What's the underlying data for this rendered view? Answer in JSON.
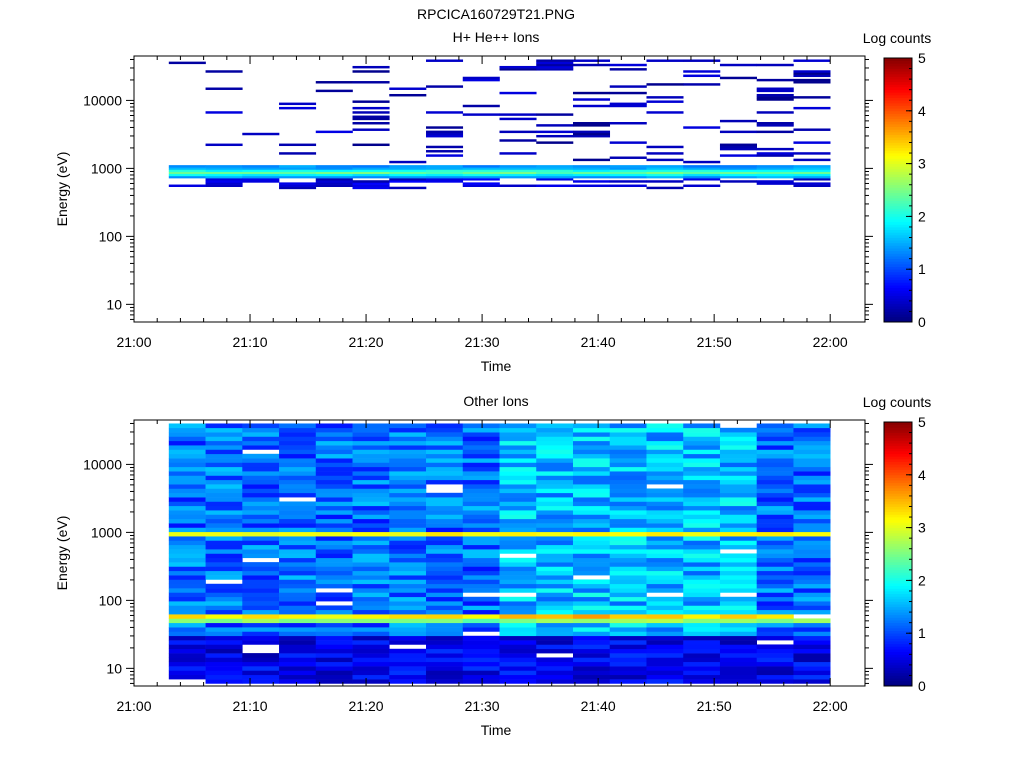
{
  "page_title": "RPCICA160729T21.PNG",
  "colorbar": {
    "label": "Log counts",
    "min": 0,
    "max": 5,
    "ticks": [
      "0",
      "1",
      "2",
      "3",
      "4",
      "5"
    ]
  },
  "chart_data": [
    {
      "type": "heatmap",
      "title": "H+ He++ Ions",
      "xlabel": "Time",
      "ylabel": "Energy (eV)",
      "x_ticks": [
        "21:00",
        "21:10",
        "21:20",
        "21:30",
        "21:40",
        "21:50",
        "22:00"
      ],
      "x_range_minutes_after_21_00": [
        0,
        63
      ],
      "y_scale": "log",
      "y_range_eV": [
        5.5,
        45000
      ],
      "y_ticks": [
        "10",
        "100",
        "1000",
        "10000"
      ],
      "z_label": "Log counts",
      "z_range": [
        0,
        5
      ],
      "description_of_values": "main band ~1000 eV at log counts ~1-2.3 from 21:03 to 22:00; scattered sparse bins 500-35000 eV at log counts ~0-0.6",
      "data_start": "21:03",
      "data_end": "22:00"
    },
    {
      "type": "heatmap",
      "title": "Other Ions",
      "xlabel": "Time",
      "ylabel": "Energy (eV)",
      "x_ticks": [
        "21:00",
        "21:10",
        "21:20",
        "21:30",
        "21:40",
        "21:50",
        "22:00"
      ],
      "x_range_minutes_after_21_00": [
        0,
        63
      ],
      "y_scale": "log",
      "y_range_eV": [
        5.5,
        45000
      ],
      "y_ticks": [
        "10",
        "100",
        "1000",
        "10000"
      ],
      "z_label": "Log counts",
      "z_range": [
        0,
        5
      ],
      "description_of_values": "strong bands near 55 eV (log counts ~4.3) and ~900 eV (log counts ~3.9), weaker band near 1800 eV (~2.8); background ~0.5-2",
      "data_start": "21:03",
      "data_end": "22:00"
    }
  ]
}
